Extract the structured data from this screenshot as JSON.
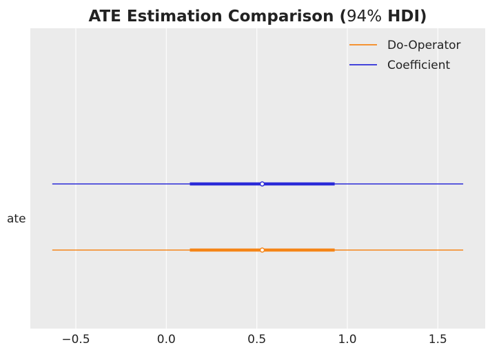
{
  "chart_data": {
    "type": "forest",
    "title_parts": [
      {
        "text": "ATE Estimation Comparison (",
        "bold": true
      },
      {
        "text": "94%",
        "bold": false
      },
      {
        "text": " HDI)",
        "bold": true
      }
    ],
    "xlim": [
      -0.75,
      1.75
    ],
    "xticks": [
      -0.5,
      0.0,
      0.5,
      1.0,
      1.5
    ],
    "xtick_labels": [
      "−0.5",
      "0.0",
      "0.5",
      "1.0",
      "1.5"
    ],
    "y_label": "ate",
    "grid": true,
    "background": "#ebebeb",
    "legend_position": "upper-right",
    "series": [
      {
        "name": "Do-Operator",
        "color": "#f58518",
        "hdi94": [
          -0.63,
          1.64
        ],
        "iqr": [
          0.13,
          0.93
        ],
        "point": 0.53
      },
      {
        "name": "Coefficient",
        "color": "#2a2ad8",
        "hdi94": [
          -0.63,
          1.64
        ],
        "iqr": [
          0.13,
          0.93
        ],
        "point": 0.53
      }
    ]
  }
}
